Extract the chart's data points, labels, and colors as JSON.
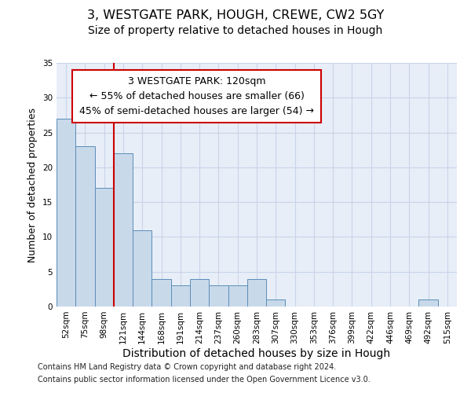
{
  "title1": "3, WESTGATE PARK, HOUGH, CREWE, CW2 5GY",
  "title2": "Size of property relative to detached houses in Hough",
  "xlabel": "Distribution of detached houses by size in Hough",
  "ylabel": "Number of detached properties",
  "bar_values": [
    27,
    23,
    17,
    22,
    11,
    4,
    3,
    4,
    3,
    3,
    4,
    1,
    0,
    0,
    0,
    0,
    0,
    0,
    0,
    1,
    0
  ],
  "bar_labels": [
    "52sqm",
    "75sqm",
    "98sqm",
    "121sqm",
    "144sqm",
    "168sqm",
    "191sqm",
    "214sqm",
    "237sqm",
    "260sqm",
    "283sqm",
    "307sqm",
    "330sqm",
    "353sqm",
    "376sqm",
    "399sqm",
    "422sqm",
    "446sqm",
    "469sqm",
    "492sqm",
    "515sqm"
  ],
  "bar_color": "#c8d9ea",
  "bar_edge_color": "#5b8db8",
  "bar_edge_width": 0.7,
  "ylim": [
    0,
    35
  ],
  "yticks": [
    0,
    5,
    10,
    15,
    20,
    25,
    30,
    35
  ],
  "grid_color": "#c8d4e8",
  "background_color": "#e8eef8",
  "red_line_x": 2.5,
  "annotation_text": "3 WESTGATE PARK: 120sqm\n← 55% of detached houses are smaller (66)\n45% of semi-detached houses are larger (54) →",
  "footer1": "Contains HM Land Registry data © Crown copyright and database right 2024.",
  "footer2": "Contains public sector information licensed under the Open Government Licence v3.0.",
  "title1_fontsize": 11.5,
  "title2_fontsize": 10,
  "xlabel_fontsize": 10,
  "ylabel_fontsize": 9,
  "tick_fontsize": 7.5,
  "annotation_fontsize": 9,
  "footer_fontsize": 7
}
